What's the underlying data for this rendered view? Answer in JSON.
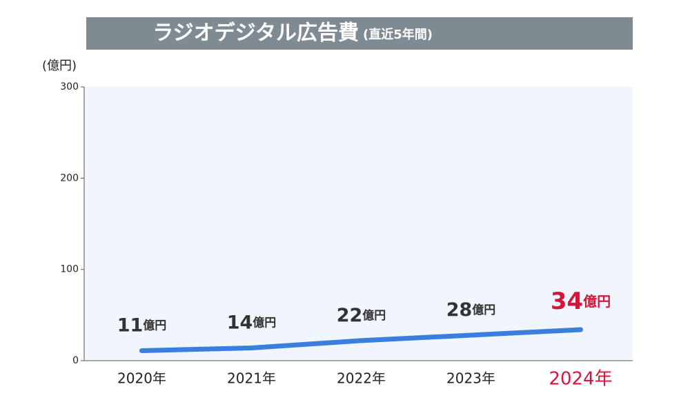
{
  "chart_data": {
    "type": "line",
    "title": "ラジオデジタル広告費",
    "subtitle": "(直近5年間)",
    "y_label": "(億円)",
    "categories": [
      "2020年",
      "2021年",
      "2022年",
      "2023年",
      "2024年"
    ],
    "values": [
      11,
      14,
      22,
      28,
      34
    ],
    "value_labels": [
      "11億円",
      "14億円",
      "22億円",
      "28億円",
      "34億円"
    ],
    "color": "#3a7ee0",
    "label_colors": [
      "#333333",
      "#333333",
      "#333333",
      "#333333",
      "#d3163b"
    ],
    "ylim": [
      0,
      300
    ],
    "yticks": [
      0,
      100,
      200,
      300
    ]
  }
}
